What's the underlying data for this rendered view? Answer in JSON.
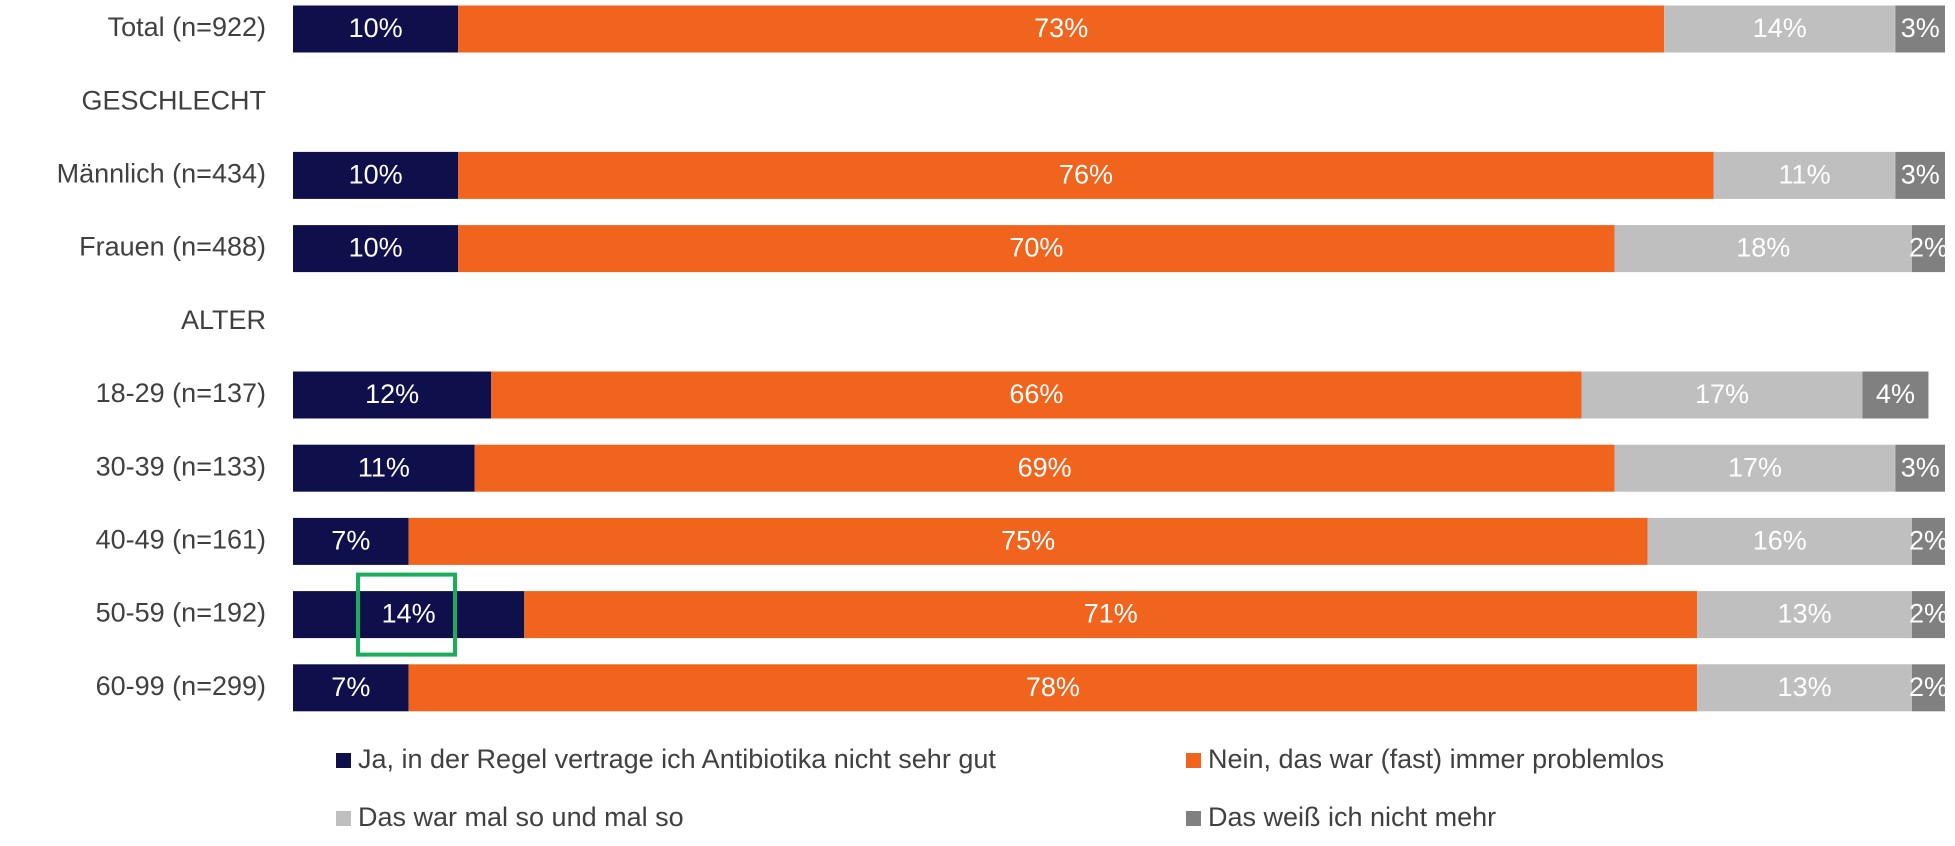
{
  "chart_data": {
    "type": "stacked_bar_horizontal",
    "categories": [
      "Total (n=922)",
      "GESCHLECHT",
      "Männlich (n=434)",
      "Frauen (n=488)",
      "ALTER",
      "18-29 (n=137)",
      "30-39 (n=133)",
      "40-49 (n=161)",
      "50-59 (n=192)",
      "60-99 (n=299)"
    ],
    "xlim": [
      0,
      100
    ],
    "series": [
      {
        "name": "Ja, in der Regel vertrage ich Antibiotika nicht sehr gut",
        "color": "#0f0f4b",
        "values": [
          10,
          null,
          10,
          10,
          null,
          12,
          11,
          7,
          14,
          7
        ],
        "value_labels": [
          "10%",
          null,
          "10%",
          "10%",
          null,
          "12%",
          "11%",
          "7%",
          "14%",
          "7%"
        ]
      },
      {
        "name": "Nein, das war (fast) immer problemlos",
        "color": "#f0641e",
        "values": [
          73,
          null,
          76,
          70,
          null,
          66,
          69,
          75,
          71,
          78
        ],
        "value_labels": [
          "73%",
          null,
          "76%",
          "70%",
          null,
          "66%",
          "69%",
          "75%",
          "71%",
          "78%"
        ]
      },
      {
        "name": "Das war mal so und mal so",
        "color": "#bfbfbf",
        "values": [
          14,
          null,
          11,
          18,
          null,
          17,
          17,
          16,
          13,
          13
        ],
        "value_labels": [
          "14%",
          null,
          "11%",
          "18%",
          null,
          "17%",
          "17%",
          "16%",
          "13%",
          "13%"
        ]
      },
      {
        "name": "Das weiß ich nicht mehr",
        "color": "#808080",
        "values": [
          3,
          null,
          3,
          2,
          null,
          4,
          3,
          2,
          2,
          2
        ],
        "value_labels": [
          "3%",
          null,
          "3%",
          "2%",
          null,
          "4%",
          "3%",
          "2%",
          "2%",
          "2%"
        ]
      }
    ]
  }
}
